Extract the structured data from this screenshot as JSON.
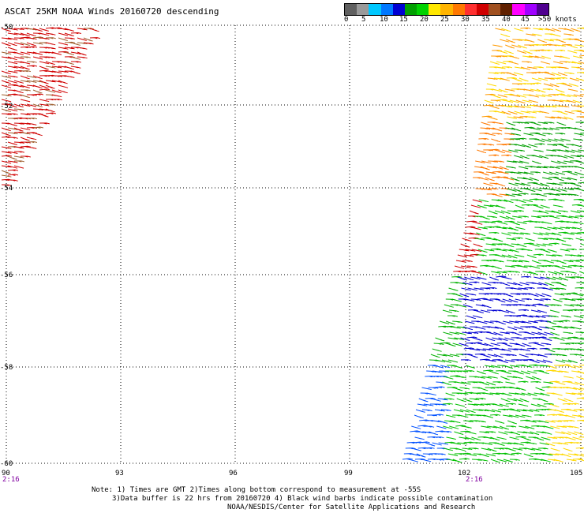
{
  "title": "ASCAT 25KM NOAA Winds 20160720 descending",
  "legend": {
    "colors": [
      "#606060",
      "#9a9a9a",
      "#00c8ff",
      "#0078ff",
      "#0000d2",
      "#00a000",
      "#00d200",
      "#ffe800",
      "#ffb400",
      "#ff7800",
      "#ff3030",
      "#d00000",
      "#a05020",
      "#602000",
      "#ff00ff",
      "#a000ff",
      "#500090"
    ],
    "labels": [
      "0",
      "5",
      "10",
      "15",
      "20",
      "25",
      "30",
      "35",
      "40",
      "45",
      ">50 knots"
    ]
  },
  "axes": {
    "lat_labels": [
      "-50",
      "-52",
      "-54",
      "-56",
      "-58",
      "-60"
    ],
    "lon_labels": [
      "90",
      "93",
      "96",
      "99",
      "102",
      "105"
    ],
    "time_labels": [
      "2:16",
      "2:16"
    ]
  },
  "notes": {
    "line1": "Note: 1) Times are GMT 2)Times along bottom correspond to measurement at -55S",
    "line2": "3)Data buffer is 22 hrs from 20160720 4) Black wind barbs indicate possible contamination",
    "line3": "NOAA/NESDIS/Center for Satellite Applications and Research"
  }
}
